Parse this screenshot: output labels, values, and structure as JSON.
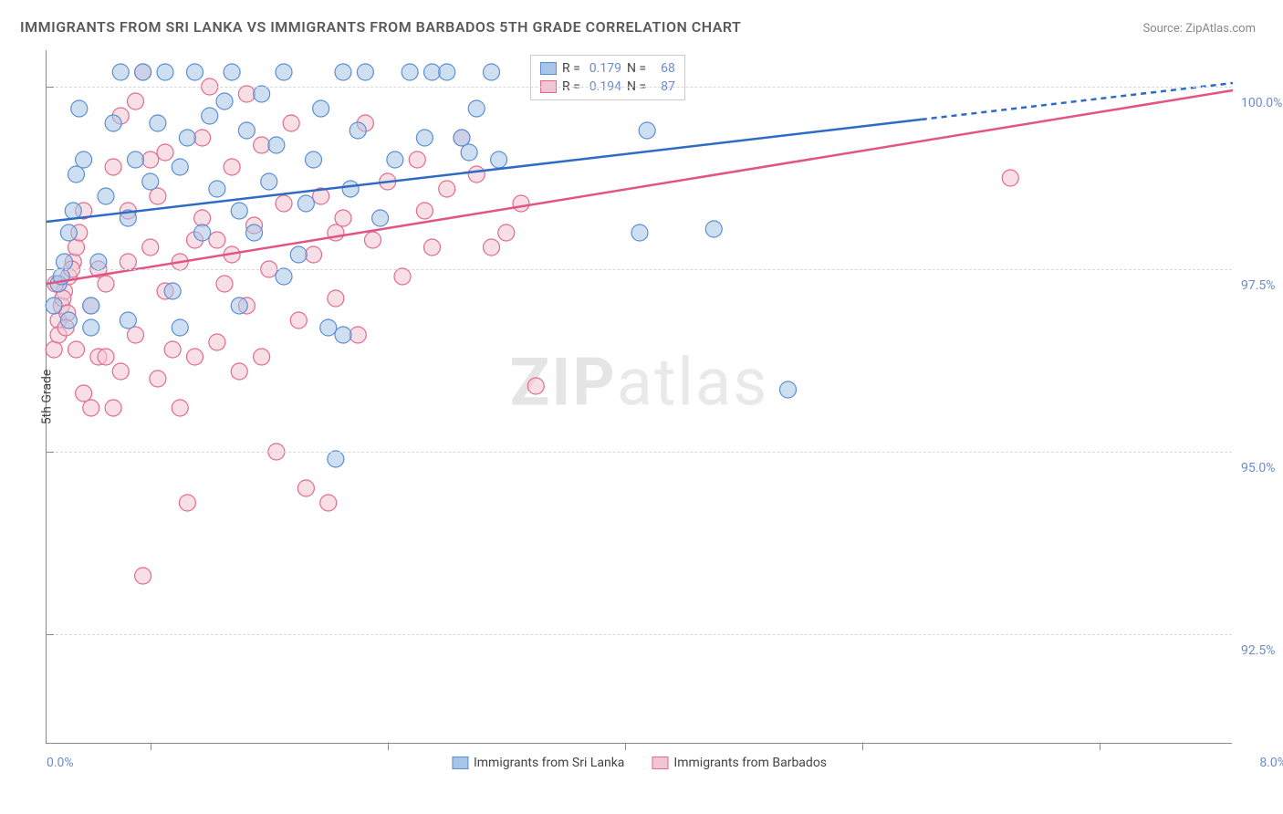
{
  "title": "IMMIGRANTS FROM SRI LANKA VS IMMIGRANTS FROM BARBADOS 5TH GRADE CORRELATION CHART",
  "source": "Source: ZipAtlas.com",
  "watermark_bold": "ZIP",
  "watermark_light": "atlas",
  "y_axis_title": "5th Grade",
  "chart": {
    "type": "scatter",
    "xlim": [
      0,
      8
    ],
    "ylim": [
      91,
      100.5
    ],
    "x_tick_positions": [
      0.7,
      2.3,
      3.9,
      5.5,
      7.1
    ],
    "x_min_label": "0.0%",
    "x_max_label": "8.0%",
    "y_ticks": [
      92.5,
      95.0,
      97.5,
      100.0
    ],
    "y_tick_labels": [
      "92.5%",
      "95.0%",
      "97.5%",
      "100.0%"
    ],
    "grid_color": "#d8d8d8",
    "background_color": "#ffffff",
    "axis_color": "#888888",
    "marker_radius": 9,
    "marker_opacity": 0.55,
    "marker_stroke_width": 1.2,
    "line_width": 2.5,
    "series": [
      {
        "id": "sri_lanka",
        "label": "Immigrants from Sri Lanka",
        "color_fill": "#a8c5e8",
        "color_stroke": "#5b8fd1",
        "line_color": "#2e6bc4",
        "r_value": "0.179",
        "n_value": "68",
        "trend": {
          "x1": 0.0,
          "y1": 98.15,
          "x2": 8.0,
          "y2": 100.05,
          "solid_until_x": 5.9
        },
        "points": [
          [
            0.05,
            97.0
          ],
          [
            0.08,
            97.3
          ],
          [
            0.1,
            97.4
          ],
          [
            0.12,
            97.6
          ],
          [
            0.15,
            98.0
          ],
          [
            0.18,
            98.3
          ],
          [
            0.2,
            98.8
          ],
          [
            0.22,
            99.7
          ],
          [
            0.25,
            99.0
          ],
          [
            0.3,
            97.0
          ],
          [
            0.35,
            97.6
          ],
          [
            0.4,
            98.5
          ],
          [
            0.45,
            99.5
          ],
          [
            0.5,
            100.2
          ],
          [
            0.55,
            98.2
          ],
          [
            0.6,
            99.0
          ],
          [
            0.65,
            100.2
          ],
          [
            0.7,
            98.7
          ],
          [
            0.75,
            99.5
          ],
          [
            0.8,
            100.2
          ],
          [
            0.85,
            97.2
          ],
          [
            0.9,
            98.9
          ],
          [
            0.95,
            99.3
          ],
          [
            1.0,
            100.2
          ],
          [
            1.05,
            98.0
          ],
          [
            1.1,
            99.6
          ],
          [
            1.15,
            98.6
          ],
          [
            1.2,
            99.8
          ],
          [
            1.25,
            100.2
          ],
          [
            1.3,
            97.0
          ],
          [
            1.35,
            99.4
          ],
          [
            1.4,
            98.0
          ],
          [
            1.45,
            99.9
          ],
          [
            1.5,
            98.7
          ],
          [
            1.55,
            99.2
          ],
          [
            1.6,
            100.2
          ],
          [
            1.7,
            97.7
          ],
          [
            1.75,
            98.4
          ],
          [
            1.8,
            99.0
          ],
          [
            1.85,
            99.7
          ],
          [
            1.9,
            96.7
          ],
          [
            1.95,
            94.9
          ],
          [
            2.0,
            100.2
          ],
          [
            2.05,
            98.6
          ],
          [
            2.1,
            99.4
          ],
          [
            2.15,
            100.2
          ],
          [
            2.25,
            98.2
          ],
          [
            2.35,
            99.0
          ],
          [
            2.45,
            100.2
          ],
          [
            2.55,
            99.3
          ],
          [
            2.6,
            100.2
          ],
          [
            2.7,
            100.2
          ],
          [
            2.8,
            99.3
          ],
          [
            2.85,
            99.1
          ],
          [
            2.9,
            99.7
          ],
          [
            3.0,
            100.2
          ],
          [
            3.05,
            99.0
          ],
          [
            4.0,
            98.0
          ],
          [
            4.05,
            99.4
          ],
          [
            4.5,
            98.05
          ],
          [
            5.0,
            95.85
          ],
          [
            0.15,
            96.8
          ],
          [
            0.3,
            96.7
          ],
          [
            0.55,
            96.8
          ],
          [
            0.9,
            96.7
          ],
          [
            1.6,
            97.4
          ],
          [
            2.0,
            96.6
          ],
          [
            1.3,
            98.3
          ]
        ]
      },
      {
        "id": "barbados",
        "label": "Immigrants from Barbados",
        "color_fill": "#f3c5d2",
        "color_stroke": "#e26a8f",
        "line_color": "#e05584",
        "r_value": "0.194",
        "n_value": "87",
        "trend": {
          "x1": 0.0,
          "y1": 97.3,
          "x2": 8.0,
          "y2": 99.95,
          "solid_until_x": 8.0
        },
        "points": [
          [
            0.05,
            96.4
          ],
          [
            0.08,
            96.8
          ],
          [
            0.1,
            97.0
          ],
          [
            0.12,
            97.2
          ],
          [
            0.15,
            97.4
          ],
          [
            0.18,
            97.6
          ],
          [
            0.2,
            97.8
          ],
          [
            0.22,
            98.0
          ],
          [
            0.06,
            97.3
          ],
          [
            0.11,
            97.1
          ],
          [
            0.14,
            96.9
          ],
          [
            0.17,
            97.5
          ],
          [
            0.08,
            96.6
          ],
          [
            0.13,
            96.7
          ],
          [
            0.25,
            98.3
          ],
          [
            0.3,
            97.0
          ],
          [
            0.35,
            96.3
          ],
          [
            0.4,
            97.3
          ],
          [
            0.45,
            98.9
          ],
          [
            0.5,
            99.6
          ],
          [
            0.55,
            97.6
          ],
          [
            0.6,
            99.8
          ],
          [
            0.65,
            100.2
          ],
          [
            0.7,
            97.8
          ],
          [
            0.75,
            98.5
          ],
          [
            0.8,
            99.1
          ],
          [
            0.85,
            96.4
          ],
          [
            0.9,
            95.6
          ],
          [
            0.95,
            94.3
          ],
          [
            1.0,
            97.9
          ],
          [
            1.05,
            99.3
          ],
          [
            1.1,
            100.0
          ],
          [
            1.15,
            96.5
          ],
          [
            1.2,
            97.3
          ],
          [
            1.25,
            98.9
          ],
          [
            1.3,
            96.1
          ],
          [
            1.35,
            97.0
          ],
          [
            1.4,
            98.1
          ],
          [
            1.45,
            99.2
          ],
          [
            1.5,
            97.5
          ],
          [
            1.55,
            95.0
          ],
          [
            1.6,
            98.4
          ],
          [
            1.65,
            99.5
          ],
          [
            1.7,
            96.8
          ],
          [
            1.75,
            94.5
          ],
          [
            1.8,
            97.7
          ],
          [
            1.85,
            98.5
          ],
          [
            1.9,
            94.3
          ],
          [
            1.95,
            97.1
          ],
          [
            2.0,
            98.2
          ],
          [
            2.1,
            96.6
          ],
          [
            2.2,
            97.9
          ],
          [
            2.3,
            98.7
          ],
          [
            2.4,
            97.4
          ],
          [
            2.5,
            99.0
          ],
          [
            2.55,
            98.3
          ],
          [
            2.6,
            97.8
          ],
          [
            2.7,
            98.6
          ],
          [
            2.8,
            99.3
          ],
          [
            2.9,
            98.8
          ],
          [
            3.0,
            97.8
          ],
          [
            3.1,
            98.0
          ],
          [
            3.2,
            98.4
          ],
          [
            3.3,
            95.9
          ],
          [
            6.5,
            98.75
          ],
          [
            0.65,
            93.3
          ],
          [
            0.3,
            95.6
          ],
          [
            0.5,
            96.1
          ],
          [
            0.4,
            96.3
          ],
          [
            0.2,
            96.4
          ],
          [
            0.45,
            95.6
          ],
          [
            0.75,
            96.0
          ],
          [
            1.0,
            96.3
          ],
          [
            0.9,
            97.6
          ],
          [
            1.15,
            97.9
          ],
          [
            0.25,
            95.8
          ],
          [
            0.35,
            97.5
          ],
          [
            0.8,
            97.2
          ],
          [
            1.05,
            98.2
          ],
          [
            1.45,
            96.3
          ],
          [
            1.25,
            97.7
          ],
          [
            1.95,
            98.0
          ],
          [
            2.15,
            99.5
          ],
          [
            0.55,
            98.3
          ],
          [
            0.7,
            99.0
          ],
          [
            1.35,
            99.9
          ],
          [
            0.6,
            96.6
          ]
        ]
      }
    ]
  },
  "legend_top": {
    "r_label": "R =",
    "n_label": "N ="
  }
}
